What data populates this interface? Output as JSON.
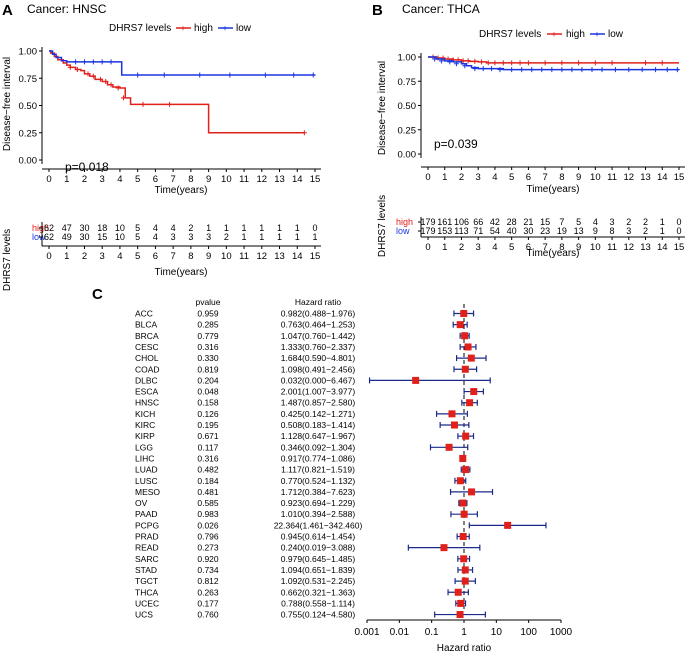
{
  "colors": {
    "high": "#e0201b",
    "low": "#1a35e0",
    "hr_marker": "#e0201b",
    "ci": "#1a2a8a",
    "axis": "#000000",
    "text": "#000000"
  },
  "panel_a": {
    "letter": "A",
    "title": "Cancer: HNSC",
    "legend_title": "DHRS7 levels",
    "legend_high": "high",
    "legend_low": "low",
    "ylabel": "Disease−free interval",
    "xlabel": "Time(years)",
    "pvalue": "p=0.018",
    "risk_ylabel": "DHRS7 levels",
    "risk_high_label": "high",
    "risk_low_label": "low"
  },
  "panel_b": {
    "letter": "B",
    "title": "Cancer: THCA",
    "legend_title": "DHRS7 levels",
    "legend_high": "high",
    "legend_low": "low",
    "ylabel": "Disease−free interval",
    "xlabel": "Time(years)",
    "pvalue": "p=0.039",
    "risk_ylabel": "DHRS7 levels",
    "risk_high_label": "high",
    "risk_low_label": "low"
  },
  "panel_c": {
    "letter": "C",
    "col_pvalue": "pvalue",
    "col_hr": "Hazard ratio",
    "xlabel": "Hazard ratio"
  },
  "chart_data": [
    {
      "type": "line",
      "id": "km_hnsc",
      "title": "Cancer: HNSC",
      "xlabel": "Time(years)",
      "ylabel": "Disease−free interval",
      "xlim": [
        0,
        15
      ],
      "ylim": [
        0,
        1
      ],
      "xticks": [
        0,
        1,
        2,
        3,
        4,
        5,
        6,
        7,
        8,
        9,
        10,
        11,
        12,
        13,
        14,
        15
      ],
      "yticks": [
        "0.00",
        "0.25",
        "0.50",
        "0.75",
        "1.00"
      ],
      "annotation": "p=0.018",
      "series": [
        {
          "name": "high",
          "points": [
            [
              0,
              1.0
            ],
            [
              0.1,
              0.98
            ],
            [
              0.3,
              0.95
            ],
            [
              0.5,
              0.92
            ],
            [
              0.8,
              0.89
            ],
            [
              1.0,
              0.87
            ],
            [
              1.2,
              0.85
            ],
            [
              1.5,
              0.83
            ],
            [
              1.8,
              0.82
            ],
            [
              2.0,
              0.79
            ],
            [
              2.3,
              0.77
            ],
            [
              2.6,
              0.74
            ],
            [
              3.0,
              0.72
            ],
            [
              3.3,
              0.69
            ],
            [
              3.6,
              0.67
            ],
            [
              4.0,
              0.66
            ],
            [
              4.3,
              0.57
            ],
            [
              4.6,
              0.51
            ],
            [
              9.0,
              0.51
            ],
            [
              9.0,
              0.25
            ],
            [
              14.4,
              0.25
            ]
          ],
          "censored": [
            [
              1.2,
              0.85
            ],
            [
              1.6,
              0.83
            ],
            [
              2.2,
              0.79
            ],
            [
              2.5,
              0.77
            ],
            [
              2.9,
              0.74
            ],
            [
              3.2,
              0.72
            ],
            [
              3.5,
              0.69
            ],
            [
              3.9,
              0.66
            ],
            [
              4.2,
              0.57
            ],
            [
              5.3,
              0.51
            ],
            [
              6.8,
              0.51
            ],
            [
              14.4,
              0.25
            ]
          ]
        },
        {
          "name": "low",
          "points": [
            [
              0,
              1.0
            ],
            [
              0.2,
              0.97
            ],
            [
              0.4,
              0.94
            ],
            [
              0.7,
              0.91
            ],
            [
              1.0,
              0.9
            ],
            [
              4.0,
              0.9
            ],
            [
              4.1,
              0.78
            ],
            [
              15,
              0.78
            ]
          ],
          "censored": [
            [
              1.5,
              0.9
            ],
            [
              2.0,
              0.9
            ],
            [
              2.5,
              0.9
            ],
            [
              3.0,
              0.9
            ],
            [
              3.5,
              0.9
            ],
            [
              5.0,
              0.78
            ],
            [
              6.5,
              0.78
            ],
            [
              8.5,
              0.78
            ],
            [
              10.2,
              0.78
            ],
            [
              12.2,
              0.78
            ],
            [
              13.8,
              0.78
            ],
            [
              14.9,
              0.78
            ]
          ]
        }
      ],
      "risk_table": {
        "times": [
          0,
          1,
          2,
          3,
          4,
          5,
          6,
          7,
          8,
          9,
          10,
          11,
          12,
          13,
          14,
          15
        ],
        "high": [
          "62",
          "47",
          "30",
          "18",
          "10",
          "5",
          "4",
          "4",
          "2",
          "1",
          "1",
          "1",
          "1",
          "1",
          "1",
          "0"
        ],
        "low": [
          "62",
          "49",
          "30",
          "15",
          "10",
          "5",
          "4",
          "3",
          "3",
          "3",
          "2",
          "1",
          "1",
          "1",
          "1",
          "1"
        ]
      }
    },
    {
      "type": "line",
      "id": "km_thca",
      "title": "Cancer: THCA",
      "xlabel": "Time(years)",
      "ylabel": "Disease−free interval",
      "xlim": [
        0,
        15
      ],
      "ylim": [
        0,
        1
      ],
      "xticks": [
        0,
        1,
        2,
        3,
        4,
        5,
        6,
        7,
        8,
        9,
        10,
        11,
        12,
        13,
        14,
        15
      ],
      "yticks": [
        "0.00",
        "0.25",
        "0.50",
        "0.75",
        "1.00"
      ],
      "annotation": "p=0.039",
      "series": [
        {
          "name": "high",
          "points": [
            [
              0,
              1.0
            ],
            [
              0.5,
              0.99
            ],
            [
              1.0,
              0.98
            ],
            [
              1.5,
              0.97
            ],
            [
              2.0,
              0.96
            ],
            [
              2.5,
              0.955
            ],
            [
              3.0,
              0.95
            ],
            [
              3.5,
              0.94
            ],
            [
              15,
              0.94
            ]
          ],
          "censored": [
            [
              0.3,
              1.0
            ],
            [
              0.6,
              0.99
            ],
            [
              0.9,
              0.99
            ],
            [
              1.2,
              0.98
            ],
            [
              1.5,
              0.97
            ],
            [
              1.8,
              0.97
            ],
            [
              2.1,
              0.96
            ],
            [
              2.4,
              0.96
            ],
            [
              2.8,
              0.955
            ],
            [
              3.2,
              0.95
            ],
            [
              3.6,
              0.94
            ],
            [
              4.0,
              0.94
            ],
            [
              4.5,
              0.94
            ],
            [
              5.0,
              0.94
            ],
            [
              5.5,
              0.94
            ],
            [
              6.0,
              0.94
            ],
            [
              7.0,
              0.94
            ],
            [
              8.0,
              0.94
            ],
            [
              9.0,
              0.94
            ],
            [
              10.0,
              0.94
            ],
            [
              11.0,
              0.94
            ],
            [
              13.0,
              0.94
            ],
            [
              14.0,
              0.94
            ]
          ]
        },
        {
          "name": "low",
          "points": [
            [
              0,
              1.0
            ],
            [
              0.5,
              0.98
            ],
            [
              1.0,
              0.96
            ],
            [
              1.5,
              0.95
            ],
            [
              2.0,
              0.93
            ],
            [
              2.3,
              0.91
            ],
            [
              2.6,
              0.89
            ],
            [
              3.0,
              0.88
            ],
            [
              4.5,
              0.87
            ],
            [
              15,
              0.87
            ]
          ],
          "censored": [
            [
              0.4,
              0.98
            ],
            [
              0.8,
              0.96
            ],
            [
              1.3,
              0.95
            ],
            [
              1.7,
              0.93
            ],
            [
              2.2,
              0.91
            ],
            [
              2.8,
              0.88
            ],
            [
              3.3,
              0.88
            ],
            [
              3.8,
              0.88
            ],
            [
              4.3,
              0.87
            ],
            [
              5.0,
              0.87
            ],
            [
              5.6,
              0.87
            ],
            [
              6.2,
              0.87
            ],
            [
              6.8,
              0.87
            ],
            [
              7.4,
              0.87
            ],
            [
              8.0,
              0.87
            ],
            [
              8.6,
              0.87
            ],
            [
              9.2,
              0.87
            ],
            [
              9.8,
              0.87
            ],
            [
              10.4,
              0.87
            ],
            [
              11.2,
              0.87
            ],
            [
              12.0,
              0.87
            ],
            [
              12.8,
              0.87
            ],
            [
              13.6,
              0.87
            ],
            [
              14.3,
              0.87
            ],
            [
              14.9,
              0.87
            ]
          ]
        }
      ],
      "risk_table": {
        "times": [
          0,
          1,
          2,
          3,
          4,
          5,
          6,
          7,
          8,
          9,
          10,
          11,
          12,
          13,
          14,
          15
        ],
        "high": [
          "179",
          "161",
          "106",
          "66",
          "42",
          "28",
          "21",
          "15",
          "7",
          "5",
          "4",
          "3",
          "2",
          "2",
          "1",
          "0"
        ],
        "low": [
          "179",
          "153",
          "113",
          "71",
          "54",
          "40",
          "30",
          "23",
          "19",
          "13",
          "9",
          "8",
          "3",
          "2",
          "1",
          "0"
        ]
      }
    },
    {
      "type": "forest",
      "id": "forest_plot",
      "xlabel": "Hazard ratio",
      "xscale": "log",
      "xlim": [
        0.001,
        1000
      ],
      "xticks": [
        0.001,
        0.01,
        0.1,
        1,
        10,
        100,
        1000
      ],
      "xtick_labels": [
        "0.001",
        "0.01",
        "0.1",
        "1",
        "10",
        "100",
        "1000"
      ],
      "reference": 1,
      "rows": [
        {
          "name": "ACC",
          "pvalue": "0.959",
          "hr_text": "0.982(0.488−1.976)",
          "hr": 0.982,
          "lo": 0.488,
          "hi": 1.976
        },
        {
          "name": "BLCA",
          "pvalue": "0.285",
          "hr_text": "0.763(0.464−1.253)",
          "hr": 0.763,
          "lo": 0.464,
          "hi": 1.253
        },
        {
          "name": "BRCA",
          "pvalue": "0.779",
          "hr_text": "1.047(0.760−1.442)",
          "hr": 1.047,
          "lo": 0.76,
          "hi": 1.442
        },
        {
          "name": "CESC",
          "pvalue": "0.316",
          "hr_text": "1.333(0.760−2.337)",
          "hr": 1.333,
          "lo": 0.76,
          "hi": 2.337
        },
        {
          "name": "CHOL",
          "pvalue": "0.330",
          "hr_text": "1.684(0.590−4.801)",
          "hr": 1.684,
          "lo": 0.59,
          "hi": 4.801
        },
        {
          "name": "COAD",
          "pvalue": "0.819",
          "hr_text": "1.098(0.491−2.456)",
          "hr": 1.098,
          "lo": 0.491,
          "hi": 2.456
        },
        {
          "name": "DLBC",
          "pvalue": "0.204",
          "hr_text": "0.032(0.000−6.467)",
          "hr": 0.032,
          "lo": 0.0012,
          "hi": 6.467
        },
        {
          "name": "ESCA",
          "pvalue": "0.048",
          "hr_text": "2.001(1.007−3.977)",
          "hr": 2.001,
          "lo": 1.007,
          "hi": 3.977
        },
        {
          "name": "HNSC",
          "pvalue": "0.158",
          "hr_text": "1.487(0.857−2.580)",
          "hr": 1.487,
          "lo": 0.857,
          "hi": 2.58
        },
        {
          "name": "KICH",
          "pvalue": "0.126",
          "hr_text": "0.425(0.142−1.271)",
          "hr": 0.425,
          "lo": 0.142,
          "hi": 1.271
        },
        {
          "name": "KIRC",
          "pvalue": "0.195",
          "hr_text": "0.508(0.183−1.414)",
          "hr": 0.508,
          "lo": 0.183,
          "hi": 1.414
        },
        {
          "name": "KIRP",
          "pvalue": "0.671",
          "hr_text": "1.128(0.647−1.967)",
          "hr": 1.128,
          "lo": 0.647,
          "hi": 1.967
        },
        {
          "name": "LGG",
          "pvalue": "0.117",
          "hr_text": "0.346(0.092−1.304)",
          "hr": 0.346,
          "lo": 0.092,
          "hi": 1.304
        },
        {
          "name": "LIHC",
          "pvalue": "0.316",
          "hr_text": "0.917(0.774−1.086)",
          "hr": 0.917,
          "lo": 0.774,
          "hi": 1.086
        },
        {
          "name": "LUAD",
          "pvalue": "0.482",
          "hr_text": "1.117(0.821−1.519)",
          "hr": 1.117,
          "lo": 0.821,
          "hi": 1.519
        },
        {
          "name": "LUSC",
          "pvalue": "0.184",
          "hr_text": "0.770(0.524−1.132)",
          "hr": 0.77,
          "lo": 0.524,
          "hi": 1.132
        },
        {
          "name": "MESO",
          "pvalue": "0.481",
          "hr_text": "1.712(0.384−7.623)",
          "hr": 1.712,
          "lo": 0.384,
          "hi": 7.623
        },
        {
          "name": "OV",
          "pvalue": "0.585",
          "hr_text": "0.923(0.694−1.229)",
          "hr": 0.923,
          "lo": 0.694,
          "hi": 1.229
        },
        {
          "name": "PAAD",
          "pvalue": "0.983",
          "hr_text": "1.010(0.394−2.588)",
          "hr": 1.01,
          "lo": 0.394,
          "hi": 2.588
        },
        {
          "name": "PCPG",
          "pvalue": "0.026",
          "hr_text": "22.364(1.461−342.460)",
          "hr": 22.364,
          "lo": 1.461,
          "hi": 342.46
        },
        {
          "name": "PRAD",
          "pvalue": "0.796",
          "hr_text": "0.945(0.614−1.454)",
          "hr": 0.945,
          "lo": 0.614,
          "hi": 1.454
        },
        {
          "name": "READ",
          "pvalue": "0.273",
          "hr_text": "0.240(0.019−3.088)",
          "hr": 0.24,
          "lo": 0.019,
          "hi": 3.088
        },
        {
          "name": "SARC",
          "pvalue": "0.920",
          "hr_text": "0.979(0.645−1.485)",
          "hr": 0.979,
          "lo": 0.645,
          "hi": 1.485
        },
        {
          "name": "STAD",
          "pvalue": "0.734",
          "hr_text": "1.094(0.651−1.839)",
          "hr": 1.094,
          "lo": 0.651,
          "hi": 1.839
        },
        {
          "name": "TGCT",
          "pvalue": "0.812",
          "hr_text": "1.092(0.531−2.245)",
          "hr": 1.092,
          "lo": 0.531,
          "hi": 2.245
        },
        {
          "name": "THCA",
          "pvalue": "0.263",
          "hr_text": "0.662(0.321−1.363)",
          "hr": 0.662,
          "lo": 0.321,
          "hi": 1.363
        },
        {
          "name": "UCEC",
          "pvalue": "0.177",
          "hr_text": "0.788(0.558−1.114)",
          "hr": 0.788,
          "lo": 0.558,
          "hi": 1.114
        },
        {
          "name": "UCS",
          "pvalue": "0.760",
          "hr_text": "0.755(0.124−4.580)",
          "hr": 0.755,
          "lo": 0.124,
          "hi": 4.58
        }
      ]
    }
  ]
}
